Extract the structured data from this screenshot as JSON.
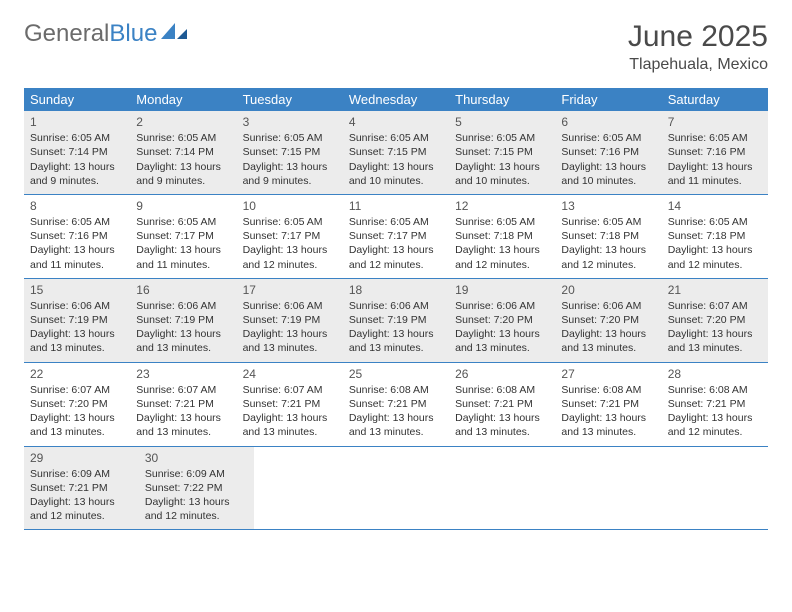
{
  "brand": {
    "word1": "General",
    "word2": "Blue"
  },
  "title": "June 2025",
  "location": "Tlapehuala, Mexico",
  "colors": {
    "header_bg": "#3b82c4",
    "header_text": "#ffffff",
    "gray_cell": "#ececec",
    "border": "#3b82c4",
    "text": "#333333",
    "logo_gray": "#6b6b6b",
    "logo_blue": "#3b82c4"
  },
  "day_headers": [
    "Sunday",
    "Monday",
    "Tuesday",
    "Wednesday",
    "Thursday",
    "Friday",
    "Saturday"
  ],
  "weeks": [
    {
      "gray": true,
      "days": [
        {
          "n": "1",
          "sunrise": "Sunrise: 6:05 AM",
          "sunset": "Sunset: 7:14 PM",
          "daylight": "Daylight: 13 hours and 9 minutes."
        },
        {
          "n": "2",
          "sunrise": "Sunrise: 6:05 AM",
          "sunset": "Sunset: 7:14 PM",
          "daylight": "Daylight: 13 hours and 9 minutes."
        },
        {
          "n": "3",
          "sunrise": "Sunrise: 6:05 AM",
          "sunset": "Sunset: 7:15 PM",
          "daylight": "Daylight: 13 hours and 9 minutes."
        },
        {
          "n": "4",
          "sunrise": "Sunrise: 6:05 AM",
          "sunset": "Sunset: 7:15 PM",
          "daylight": "Daylight: 13 hours and 10 minutes."
        },
        {
          "n": "5",
          "sunrise": "Sunrise: 6:05 AM",
          "sunset": "Sunset: 7:15 PM",
          "daylight": "Daylight: 13 hours and 10 minutes."
        },
        {
          "n": "6",
          "sunrise": "Sunrise: 6:05 AM",
          "sunset": "Sunset: 7:16 PM",
          "daylight": "Daylight: 13 hours and 10 minutes."
        },
        {
          "n": "7",
          "sunrise": "Sunrise: 6:05 AM",
          "sunset": "Sunset: 7:16 PM",
          "daylight": "Daylight: 13 hours and 11 minutes."
        }
      ]
    },
    {
      "gray": false,
      "days": [
        {
          "n": "8",
          "sunrise": "Sunrise: 6:05 AM",
          "sunset": "Sunset: 7:16 PM",
          "daylight": "Daylight: 13 hours and 11 minutes."
        },
        {
          "n": "9",
          "sunrise": "Sunrise: 6:05 AM",
          "sunset": "Sunset: 7:17 PM",
          "daylight": "Daylight: 13 hours and 11 minutes."
        },
        {
          "n": "10",
          "sunrise": "Sunrise: 6:05 AM",
          "sunset": "Sunset: 7:17 PM",
          "daylight": "Daylight: 13 hours and 12 minutes."
        },
        {
          "n": "11",
          "sunrise": "Sunrise: 6:05 AM",
          "sunset": "Sunset: 7:17 PM",
          "daylight": "Daylight: 13 hours and 12 minutes."
        },
        {
          "n": "12",
          "sunrise": "Sunrise: 6:05 AM",
          "sunset": "Sunset: 7:18 PM",
          "daylight": "Daylight: 13 hours and 12 minutes."
        },
        {
          "n": "13",
          "sunrise": "Sunrise: 6:05 AM",
          "sunset": "Sunset: 7:18 PM",
          "daylight": "Daylight: 13 hours and 12 minutes."
        },
        {
          "n": "14",
          "sunrise": "Sunrise: 6:05 AM",
          "sunset": "Sunset: 7:18 PM",
          "daylight": "Daylight: 13 hours and 12 minutes."
        }
      ]
    },
    {
      "gray": true,
      "days": [
        {
          "n": "15",
          "sunrise": "Sunrise: 6:06 AM",
          "sunset": "Sunset: 7:19 PM",
          "daylight": "Daylight: 13 hours and 13 minutes."
        },
        {
          "n": "16",
          "sunrise": "Sunrise: 6:06 AM",
          "sunset": "Sunset: 7:19 PM",
          "daylight": "Daylight: 13 hours and 13 minutes."
        },
        {
          "n": "17",
          "sunrise": "Sunrise: 6:06 AM",
          "sunset": "Sunset: 7:19 PM",
          "daylight": "Daylight: 13 hours and 13 minutes."
        },
        {
          "n": "18",
          "sunrise": "Sunrise: 6:06 AM",
          "sunset": "Sunset: 7:19 PM",
          "daylight": "Daylight: 13 hours and 13 minutes."
        },
        {
          "n": "19",
          "sunrise": "Sunrise: 6:06 AM",
          "sunset": "Sunset: 7:20 PM",
          "daylight": "Daylight: 13 hours and 13 minutes."
        },
        {
          "n": "20",
          "sunrise": "Sunrise: 6:06 AM",
          "sunset": "Sunset: 7:20 PM",
          "daylight": "Daylight: 13 hours and 13 minutes."
        },
        {
          "n": "21",
          "sunrise": "Sunrise: 6:07 AM",
          "sunset": "Sunset: 7:20 PM",
          "daylight": "Daylight: 13 hours and 13 minutes."
        }
      ]
    },
    {
      "gray": false,
      "days": [
        {
          "n": "22",
          "sunrise": "Sunrise: 6:07 AM",
          "sunset": "Sunset: 7:20 PM",
          "daylight": "Daylight: 13 hours and 13 minutes."
        },
        {
          "n": "23",
          "sunrise": "Sunrise: 6:07 AM",
          "sunset": "Sunset: 7:21 PM",
          "daylight": "Daylight: 13 hours and 13 minutes."
        },
        {
          "n": "24",
          "sunrise": "Sunrise: 6:07 AM",
          "sunset": "Sunset: 7:21 PM",
          "daylight": "Daylight: 13 hours and 13 minutes."
        },
        {
          "n": "25",
          "sunrise": "Sunrise: 6:08 AM",
          "sunset": "Sunset: 7:21 PM",
          "daylight": "Daylight: 13 hours and 13 minutes."
        },
        {
          "n": "26",
          "sunrise": "Sunrise: 6:08 AM",
          "sunset": "Sunset: 7:21 PM",
          "daylight": "Daylight: 13 hours and 13 minutes."
        },
        {
          "n": "27",
          "sunrise": "Sunrise: 6:08 AM",
          "sunset": "Sunset: 7:21 PM",
          "daylight": "Daylight: 13 hours and 13 minutes."
        },
        {
          "n": "28",
          "sunrise": "Sunrise: 6:08 AM",
          "sunset": "Sunset: 7:21 PM",
          "daylight": "Daylight: 13 hours and 12 minutes."
        }
      ]
    },
    {
      "gray": true,
      "days": [
        {
          "n": "29",
          "sunrise": "Sunrise: 6:09 AM",
          "sunset": "Sunset: 7:21 PM",
          "daylight": "Daylight: 13 hours and 12 minutes."
        },
        {
          "n": "30",
          "sunrise": "Sunrise: 6:09 AM",
          "sunset": "Sunset: 7:22 PM",
          "daylight": "Daylight: 13 hours and 12 minutes."
        },
        null,
        null,
        null,
        null,
        null
      ]
    }
  ]
}
